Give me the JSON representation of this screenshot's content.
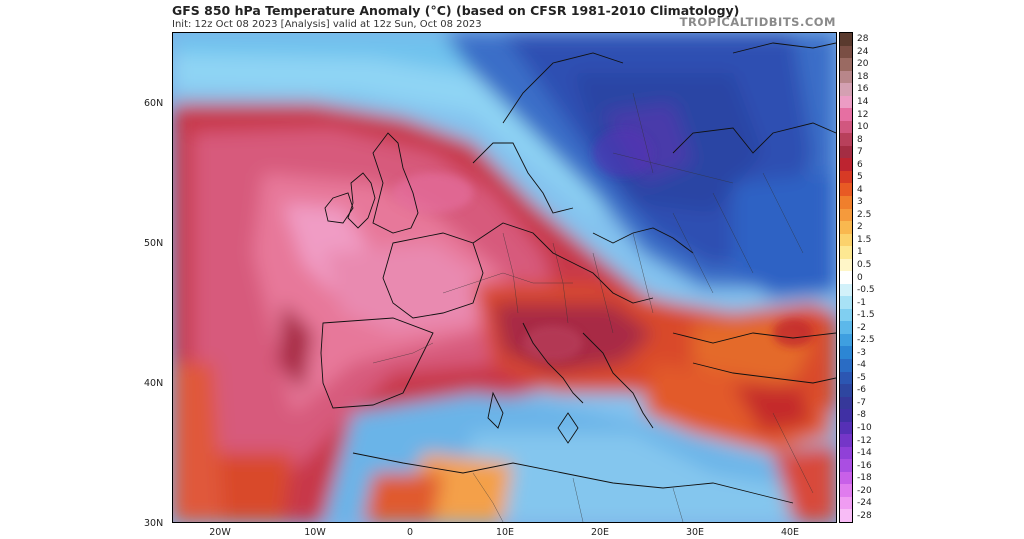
{
  "header": {
    "title": "GFS 850 hPa Temperature Anomaly (°C) (based on CFSR 1981-2010 Climatology)",
    "subtitle": "Init: 12z Oct 08 2023   [Analysis]   valid at 12z Sun, Oct 08 2023",
    "brand": "TROPICALTIDBITS.COM"
  },
  "map": {
    "lat_labels": [
      "60N",
      "50N",
      "40N",
      "30N"
    ],
    "lon_labels": [
      "20W",
      "10W",
      "0",
      "10E",
      "20E",
      "30E",
      "40E"
    ],
    "extent": {
      "lon_min": -25,
      "lon_max": 45,
      "lat_min": 30,
      "lat_max": 65
    },
    "regions": [
      {
        "name": "western-europe-warm-anomaly",
        "value": 12
      },
      {
        "name": "northeast-europe-cold-anomaly",
        "value": -6
      },
      {
        "name": "turkey-warm-anomaly",
        "value": 5
      },
      {
        "name": "north-africa-cool-anomaly",
        "value": -2
      }
    ]
  },
  "colorbar": {
    "labels": [
      "28",
      "24",
      "20",
      "18",
      "16",
      "14",
      "12",
      "10",
      "8",
      "7",
      "6",
      "5",
      "4",
      "3",
      "2.5",
      "2",
      "1.5",
      "1",
      "0.5",
      "0",
      "-0.5",
      "-1",
      "-1.5",
      "-2",
      "-2.5",
      "-3",
      "-4",
      "-5",
      "-6",
      "-7",
      "-8",
      "-10",
      "-12",
      "-14",
      "-16",
      "-18",
      "-20",
      "-24",
      "-28"
    ],
    "colors": [
      "#5a3a2e",
      "#7a4e44",
      "#9a6a62",
      "#b8868a",
      "#d4a0b2",
      "#ec9cc4",
      "#e66fa2",
      "#d1577f",
      "#b8405b",
      "#a42d43",
      "#bd2430",
      "#d73a25",
      "#e85a24",
      "#f07f2c",
      "#f59a3c",
      "#f9b84f",
      "#fbd26c",
      "#fde892",
      "#fff6c8",
      "#ffffff",
      "#d2f1fa",
      "#a8e2f6",
      "#80cff1",
      "#5cb8ea",
      "#3e9fe0",
      "#2c86d4",
      "#2a6cc4",
      "#2c56b2",
      "#2e46a0",
      "#36389a",
      "#4030a4",
      "#5630b6",
      "#7436c8",
      "#9040d8",
      "#aa4ee2",
      "#c860e8",
      "#e07cee",
      "#f09cf2",
      "#f8bcf6"
    ]
  }
}
